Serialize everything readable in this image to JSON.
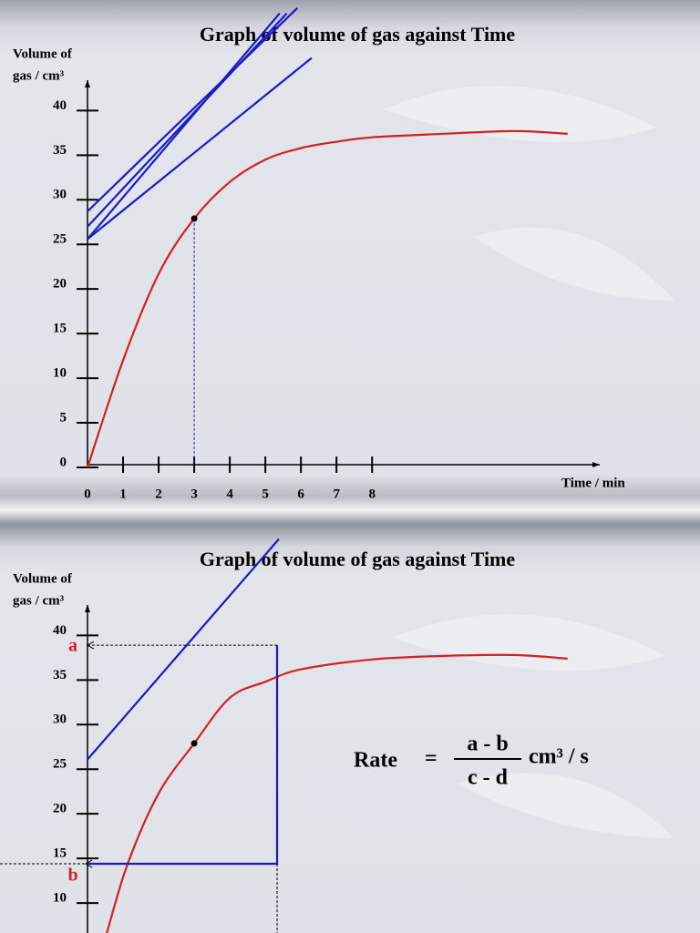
{
  "chart_data": [
    {
      "type": "line",
      "title": "Graph of volume of gas  against Time",
      "ylabel": [
        "Volume of",
        "gas / cm³"
      ],
      "xlabel": "Time / min",
      "xlim": [
        0,
        14.4
      ],
      "ylim": [
        0,
        43
      ],
      "xticks": [
        0,
        1,
        2,
        3,
        4,
        5,
        6,
        7,
        8
      ],
      "yticks": [
        0,
        5,
        10,
        15,
        20,
        25,
        30,
        35,
        40
      ],
      "series": [
        {
          "color": "#d42020",
          "x": [
            0,
            1,
            2,
            3,
            4,
            5,
            6,
            7,
            8,
            10,
            12,
            13.5
          ],
          "values": [
            0,
            12,
            21.7,
            27.9,
            32,
            34.5,
            35.8,
            36.5,
            37,
            37.4,
            37.7,
            37.4
          ]
        },
        {
          "color": "#1a1ac8",
          "x": [
            0,
            5.6
          ],
          "values": [
            27,
            50.9
          ]
        },
        {
          "color": "#1a1ac8",
          "x": [
            0,
            5.9
          ],
          "values": [
            28.7,
            51.5
          ]
        },
        {
          "color": "#1a1ac8",
          "x": [
            0,
            5.4
          ],
          "values": [
            25.6,
            50.9
          ]
        },
        {
          "color": "#1a1ac8",
          "x": [
            0,
            6.3
          ],
          "values": [
            25.6,
            45.9
          ]
        }
      ]
    },
    {
      "type": "line",
      "title": "Graph of volume of gas  against Time",
      "ylabel": [
        "Volume of",
        "gas / cm³"
      ],
      "xlim": [
        0,
        14.4
      ],
      "ylim": [
        0,
        43
      ],
      "yticks": [
        10,
        15,
        20,
        25,
        30,
        35,
        40
      ],
      "series": [
        {
          "color": "#d42020",
          "x": [
            0.54,
            1.13,
            2,
            3,
            4,
            5,
            6,
            8,
            10,
            12,
            13.5
          ],
          "values": [
            6.6,
            14.4,
            22.3,
            27.9,
            33,
            34.8,
            36.2,
            37.3,
            37.7,
            37.8,
            37.4
          ]
        },
        {
          "color": "#1a1ac8",
          "x": [
            0,
            5.38
          ],
          "values": [
            26.1,
            50.8
          ]
        },
        {
          "color": "#1a1ac8",
          "x": [
            0,
            5.33,
            5.33
          ],
          "values": [
            14.4,
            14.4,
            38.9
          ]
        }
      ],
      "markers": [
        {
          "label": "a",
          "value": 38.9
        },
        {
          "label": "b",
          "value": 14.4
        }
      ],
      "formula": {
        "lhs": "Rate",
        "eq": "=",
        "numerator": "a - b",
        "denominator": "c - d",
        "unit": "cm³ / s"
      }
    }
  ]
}
